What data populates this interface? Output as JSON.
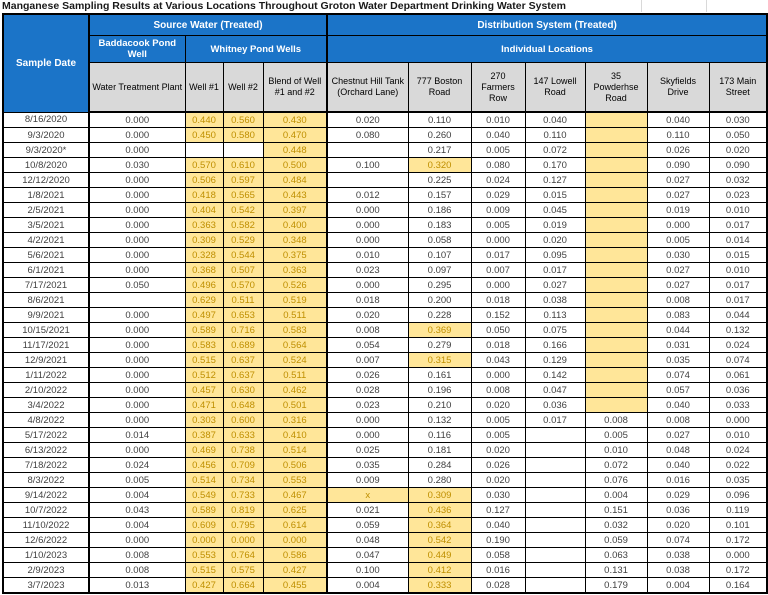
{
  "title": "Manganese Sampling Results at Various Locations Throughout Groton Water Department Drinking Water System",
  "colors": {
    "header_blue": "#1B74C8",
    "subheader_gray": "#D9D9D9",
    "highlight_bg": "#FFE699",
    "highlight_text": "#BF8F00",
    "value_text": "#404040"
  },
  "header": {
    "sample_date": "Sample Date",
    "source_water": "Source Water  (Treated)",
    "distribution": "Distribution System (Treated)",
    "baddacook": "Baddacook Pond Well",
    "whitney": "Whitney Pond Wells",
    "individual": "Individual Locations",
    "columns": [
      "Water Treatment Plant",
      "Well #1",
      "Well #2",
      "Blend of Well #1 and #2",
      "Chestnut Hill Tank (Orchard Lane)",
      "777 Boston Road",
      "270 Farmers Row",
      "147 Lowell Road",
      "35 Powderhse Road",
      "Skyfields Drive",
      "173 Main Street"
    ]
  },
  "rows": [
    {
      "date": "8/16/2020",
      "cells": [
        "0.000",
        {
          "v": "0.440",
          "hl": true
        },
        {
          "v": "0.560",
          "hl": true
        },
        {
          "v": "0.430",
          "hl": true
        },
        "0.020",
        "0.110",
        "0.010",
        "0.040",
        {
          "v": "",
          "hl": true
        },
        "0.040",
        "0.030"
      ]
    },
    {
      "date": "9/3/2020",
      "cells": [
        "0.000",
        {
          "v": "0.450",
          "hl": true
        },
        {
          "v": "0.580",
          "hl": true
        },
        {
          "v": "0.470",
          "hl": true
        },
        "0.080",
        "0.260",
        "0.040",
        "0.110",
        {
          "v": "",
          "hl": true
        },
        "0.110",
        "0.050"
      ]
    },
    {
      "date": "9/3/2020*",
      "cells": [
        "0.000",
        "",
        "",
        {
          "v": "0.448",
          "hl": true
        },
        "",
        "0.217",
        "0.005",
        "0.072",
        {
          "v": "",
          "hl": true
        },
        "0.026",
        "0.020"
      ]
    },
    {
      "date": "10/8/2020",
      "cells": [
        "0.030",
        {
          "v": "0.570",
          "hl": true
        },
        {
          "v": "0.610",
          "hl": true
        },
        {
          "v": "0.500",
          "hl": true
        },
        "0.100",
        {
          "v": "0.320",
          "hl": true
        },
        "0.080",
        "0.170",
        {
          "v": "",
          "hl": true
        },
        "0.090",
        "0.090"
      ]
    },
    {
      "date": "12/12/2020",
      "cells": [
        "0.000",
        {
          "v": "0.506",
          "hl": true
        },
        {
          "v": "0.597",
          "hl": true
        },
        {
          "v": "0.484",
          "hl": true
        },
        "",
        "0.225",
        "0.024",
        "0.127",
        {
          "v": "",
          "hl": true
        },
        "0.027",
        "0.032"
      ]
    },
    {
      "date": "1/8/2021",
      "cells": [
        "0.000",
        {
          "v": "0.418",
          "hl": true
        },
        {
          "v": "0.565",
          "hl": true
        },
        {
          "v": "0.443",
          "hl": true
        },
        "0.012",
        "0.157",
        "0.029",
        "0.015",
        {
          "v": "",
          "hl": true
        },
        "0.027",
        "0.023"
      ]
    },
    {
      "date": "2/5/2021",
      "cells": [
        "0.000",
        {
          "v": "0.404",
          "hl": true
        },
        {
          "v": "0.542",
          "hl": true
        },
        {
          "v": "0.397",
          "hl": true
        },
        "0.000",
        "0.186",
        "0.009",
        "0.045",
        {
          "v": "",
          "hl": true
        },
        "0.019",
        "0.010"
      ]
    },
    {
      "date": "3/5/2021",
      "cells": [
        "0.000",
        {
          "v": "0.363",
          "hl": true
        },
        {
          "v": "0.582",
          "hl": true
        },
        {
          "v": "0.400",
          "hl": true
        },
        "0.000",
        "0.183",
        "0.005",
        "0.019",
        {
          "v": "",
          "hl": true
        },
        "0.000",
        "0.017"
      ]
    },
    {
      "date": "4/2/2021",
      "cells": [
        "0.000",
        {
          "v": "0.309",
          "hl": true
        },
        {
          "v": "0.529",
          "hl": true
        },
        {
          "v": "0.348",
          "hl": true
        },
        "0.000",
        "0.058",
        "0.000",
        "0.020",
        {
          "v": "",
          "hl": true
        },
        "0.005",
        "0.014"
      ]
    },
    {
      "date": "5/6/2021",
      "cells": [
        "0.000",
        {
          "v": "0.328",
          "hl": true
        },
        {
          "v": "0.544",
          "hl": true
        },
        {
          "v": "0.375",
          "hl": true
        },
        "0.010",
        "0.107",
        "0.017",
        "0.095",
        {
          "v": "",
          "hl": true
        },
        "0.030",
        "0.015"
      ]
    },
    {
      "date": "6/1/2021",
      "cells": [
        "0.000",
        {
          "v": "0.368",
          "hl": true
        },
        {
          "v": "0.507",
          "hl": true
        },
        {
          "v": "0.363",
          "hl": true
        },
        "0.023",
        "0.097",
        "0.007",
        "0.017",
        {
          "v": "",
          "hl": true
        },
        "0.027",
        "0.010"
      ]
    },
    {
      "date": "7/17/2021",
      "cells": [
        "0.050",
        {
          "v": "0.496",
          "hl": true
        },
        {
          "v": "0.570",
          "hl": true
        },
        {
          "v": "0.526",
          "hl": true
        },
        "0.000",
        "0.295",
        "0.000",
        "0.027",
        {
          "v": "",
          "hl": true
        },
        "0.027",
        "0.017"
      ]
    },
    {
      "date": "8/6/2021",
      "cells": [
        "",
        {
          "v": "0.629",
          "hl": true
        },
        {
          "v": "0.511",
          "hl": true
        },
        {
          "v": "0.519",
          "hl": true
        },
        "0.018",
        "0.200",
        "0.018",
        "0.038",
        {
          "v": "",
          "hl": true
        },
        "0.008",
        "0.017"
      ]
    },
    {
      "date": "9/9/2021",
      "cells": [
        "0.000",
        {
          "v": "0.497",
          "hl": true
        },
        {
          "v": "0.653",
          "hl": true
        },
        {
          "v": "0.511",
          "hl": true
        },
        "0.020",
        "0.228",
        "0.152",
        "0.113",
        {
          "v": "",
          "hl": true
        },
        "0.083",
        "0.044"
      ]
    },
    {
      "date": "10/15/2021",
      "cells": [
        "0.000",
        {
          "v": "0.589",
          "hl": true
        },
        {
          "v": "0.716",
          "hl": true
        },
        {
          "v": "0.583",
          "hl": true
        },
        "0.008",
        {
          "v": "0.369",
          "hl": true
        },
        "0.050",
        "0.075",
        {
          "v": "",
          "hl": true
        },
        "0.044",
        "0.132"
      ]
    },
    {
      "date": "11/17/2021",
      "cells": [
        "0.000",
        {
          "v": "0.583",
          "hl": true
        },
        {
          "v": "0.689",
          "hl": true
        },
        {
          "v": "0.564",
          "hl": true
        },
        "0.054",
        "0.279",
        "0.018",
        "0.166",
        {
          "v": "",
          "hl": true
        },
        "0.031",
        "0.024"
      ]
    },
    {
      "date": "12/9/2021",
      "cells": [
        "0.000",
        {
          "v": "0.515",
          "hl": true
        },
        {
          "v": "0.637",
          "hl": true
        },
        {
          "v": "0.524",
          "hl": true
        },
        "0.007",
        {
          "v": "0.315",
          "hl": true
        },
        "0.043",
        "0.129",
        {
          "v": "",
          "hl": true
        },
        "0.035",
        "0.074"
      ]
    },
    {
      "date": "1/11/2022",
      "cells": [
        "0.000",
        {
          "v": "0.512",
          "hl": true
        },
        {
          "v": "0.637",
          "hl": true
        },
        {
          "v": "0.511",
          "hl": true
        },
        "0.026",
        "0.161",
        "0.000",
        "0.142",
        {
          "v": "",
          "hl": true
        },
        "0.074",
        "0.061"
      ]
    },
    {
      "date": "2/10/2022",
      "cells": [
        "0.000",
        {
          "v": "0.457",
          "hl": true
        },
        {
          "v": "0.630",
          "hl": true
        },
        {
          "v": "0.462",
          "hl": true
        },
        "0.028",
        "0.196",
        "0.008",
        "0.047",
        {
          "v": "",
          "hl": true
        },
        "0.057",
        "0.036"
      ]
    },
    {
      "date": "3/4/2022",
      "cells": [
        "0.000",
        {
          "v": "0.471",
          "hl": true
        },
        {
          "v": "0.648",
          "hl": true
        },
        {
          "v": "0.501",
          "hl": true
        },
        "0.023",
        "0.210",
        "0.020",
        "0.036",
        {
          "v": "",
          "hl": true
        },
        "0.040",
        "0.033"
      ]
    },
    {
      "date": "4/8/2022",
      "cells": [
        "0.000",
        {
          "v": "0.303",
          "hl": true
        },
        {
          "v": "0.600",
          "hl": true
        },
        {
          "v": "0.316",
          "hl": true
        },
        "0.000",
        "0.132",
        "0.005",
        "0.017",
        "0.008",
        "0.008",
        "0.000"
      ]
    },
    {
      "date": "5/17/2022",
      "cells": [
        "0.014",
        {
          "v": "0.387",
          "hl": true
        },
        {
          "v": "0.633",
          "hl": true
        },
        {
          "v": "0.410",
          "hl": true
        },
        "0.000",
        "0.116",
        "0.005",
        "",
        "0.005",
        "0.027",
        "0.010"
      ]
    },
    {
      "date": "6/13/2022",
      "cells": [
        "0.000",
        {
          "v": "0.469",
          "hl": true
        },
        {
          "v": "0.738",
          "hl": true
        },
        {
          "v": "0.514",
          "hl": true
        },
        "0.025",
        "0.181",
        "0.020",
        "",
        "0.010",
        "0.048",
        "0.024"
      ]
    },
    {
      "date": "7/18/2022",
      "cells": [
        "0.024",
        {
          "v": "0.456",
          "hl": true
        },
        {
          "v": "0.709",
          "hl": true
        },
        {
          "v": "0.506",
          "hl": true
        },
        "0.035",
        "0.284",
        "0.026",
        "",
        "0.072",
        "0.040",
        "0.022"
      ]
    },
    {
      "date": "8/3/2022",
      "cells": [
        "0.005",
        {
          "v": "0.514",
          "hl": true
        },
        {
          "v": "0.734",
          "hl": true
        },
        {
          "v": "0.553",
          "hl": true
        },
        "0.009",
        "0.280",
        "0.020",
        "",
        "0.076",
        "0.016",
        "0.035"
      ]
    },
    {
      "date": "9/14/2022",
      "cells": [
        "0.004",
        {
          "v": "0.549",
          "hl": true
        },
        {
          "v": "0.733",
          "hl": true
        },
        {
          "v": "0.467",
          "hl": true
        },
        {
          "v": "x",
          "hl": true
        },
        {
          "v": "0.309",
          "hl": true
        },
        "0.030",
        "",
        "0.004",
        "0.029",
        "0.096"
      ]
    },
    {
      "date": "10/7/2022",
      "cells": [
        "0.043",
        {
          "v": "0.589",
          "hl": true
        },
        {
          "v": "0.819",
          "hl": true
        },
        {
          "v": "0.625",
          "hl": true
        },
        "0.021",
        {
          "v": "0.436",
          "hl": true
        },
        "0.127",
        "",
        "0.151",
        "0.036",
        "0.119"
      ]
    },
    {
      "date": "11/10/2022",
      "cells": [
        "0.004",
        {
          "v": "0.609",
          "hl": true
        },
        {
          "v": "0.795",
          "hl": true
        },
        {
          "v": "0.614",
          "hl": true
        },
        "0.059",
        {
          "v": "0.364",
          "hl": true
        },
        "0.040",
        "",
        "0.032",
        "0.020",
        "0.101"
      ]
    },
    {
      "date": "12/6/2022",
      "cells": [
        "0.000",
        {
          "v": "0.000",
          "hl": true
        },
        {
          "v": "0.000",
          "hl": true
        },
        {
          "v": "0.000",
          "hl": true
        },
        "0.048",
        {
          "v": "0.542",
          "hl": true
        },
        "0.190",
        "",
        "0.059",
        "0.074",
        "0.172"
      ]
    },
    {
      "date": "1/10/2023",
      "cells": [
        "0.008",
        {
          "v": "0.553",
          "hl": true
        },
        {
          "v": "0.764",
          "hl": true
        },
        {
          "v": "0.586",
          "hl": true
        },
        "0.047",
        {
          "v": "0.449",
          "hl": true
        },
        "0.058",
        "",
        "0.063",
        "0.038",
        "0.000"
      ]
    },
    {
      "date": "2/9/2023",
      "cells": [
        "0.008",
        {
          "v": "0.515",
          "hl": true
        },
        {
          "v": "0.575",
          "hl": true
        },
        {
          "v": "0.427",
          "hl": true
        },
        "0.100",
        {
          "v": "0.412",
          "hl": true
        },
        "0.016",
        "",
        "0.131",
        "0.038",
        "0.172"
      ]
    },
    {
      "date": "3/7/2023",
      "cells": [
        "0.013",
        {
          "v": "0.427",
          "hl": true
        },
        {
          "v": "0.664",
          "hl": true
        },
        {
          "v": "0.455",
          "hl": true
        },
        "0.004",
        {
          "v": "0.333",
          "hl": true
        },
        "0.028",
        "",
        "0.179",
        "0.004",
        "0.164"
      ]
    }
  ]
}
